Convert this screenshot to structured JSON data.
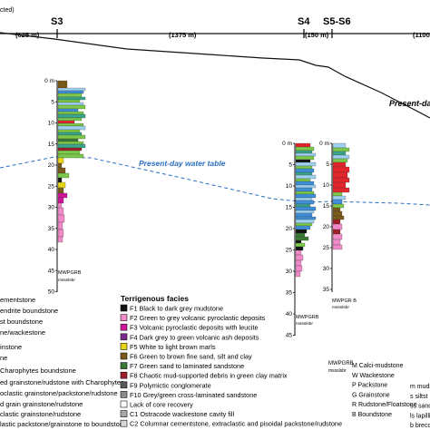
{
  "transect": {
    "head_label": "cted)",
    "stations": [
      "S3",
      "S4",
      "S5-S6"
    ],
    "distances": [
      "(625 m)",
      "(1375 m)",
      "(150 m)",
      "(1100"
    ],
    "surface_label": "Present-day"
  },
  "water_table_label": "Present-day water table",
  "logs": [
    {
      "id": "S3",
      "depth_ticks": [
        "0 m",
        "5",
        "10",
        "15",
        "20",
        "25",
        "30",
        "35",
        "40",
        "45",
        "50"
      ],
      "grain_key": "MWPGRB",
      "grain_key_sub": "mssslsbr"
    },
    {
      "id": "S4",
      "depth_ticks": [
        "0 m",
        "5",
        "10",
        "15",
        "20",
        "25",
        "30",
        "35",
        "40",
        "45"
      ],
      "grain_key": "MWPGRB",
      "grain_key_sub": "mssslsbr"
    },
    {
      "id": "S5-S6",
      "depth_ticks": [
        "0 m",
        "5",
        "10",
        "15",
        "20",
        "25",
        "30",
        "35"
      ],
      "grain_key": "MWPGR B",
      "grain_key_sub": "mssslsbr"
    }
  ],
  "carbonate_legend": [
    "ementstone",
    "endrite boundstone",
    "st boundstone",
    "ne/wackestone",
    "instone",
    "ne",
    "Charophytes boundstone",
    "ed grainstone/rudstone with Charophytes",
    "oclastic grainstone/packstone/rudstone",
    "d grain grainstone/rudstone",
    "clastic grainstone/rudstone",
    "lastic packstone/grainstone to boundstone"
  ],
  "terrigenous_legend": {
    "title": "Terrigenous facies",
    "items": [
      {
        "label": "F1 Black to dark grey mudstone",
        "color": "#141414"
      },
      {
        "label": "F2 Green to grey volcanic pyroclastic deposits",
        "color": "#f08ac8"
      },
      {
        "label": "F3 Volcanic pyroclastic deposits with leucite",
        "color": "#d0159a"
      },
      {
        "label": "F4 Dark grey to green volcanic ash deposits",
        "color": "#7a2b8e"
      },
      {
        "label": "F5 White to light brown marls",
        "color": "#e6d416"
      },
      {
        "label": "F6 Green to brown fine sand, silt and clay",
        "color": "#7a5a1a"
      },
      {
        "label": "F7 Green sand to laminated sandstone",
        "color": "#3a7a34"
      },
      {
        "label": "F8 Chaotic mud-supported debris in green clay matrix",
        "color": "#a01e28"
      },
      {
        "label": "F9 Polymictic conglomerate",
        "color": "#5a5a5a"
      },
      {
        "label": "F10 Grey/green cross-laminated sandstone",
        "color": "#8c8c8c"
      },
      {
        "label": "Lack of core recovery",
        "color": "#ffffff"
      },
      {
        "label": "C1 Ostracode wackestone cavity fill",
        "color": "#a8a8a8"
      },
      {
        "label": "C2 Columnar cementstone, extraclastic and pisoidal packstone/rudstone",
        "color": "#d8d8d8"
      }
    ]
  },
  "grain_size_key": {
    "scale": "MWPGRB",
    "scale_sub": "mssslsbr",
    "left": [
      "M Calci-mudstone",
      "W Wackestone",
      "P Packstone",
      "G Grainstone",
      "R Rudstone/Floatstone",
      "B Boundstone"
    ],
    "right": [
      "m mudst",
      "s siltst",
      "ss sands",
      "ls lapilli",
      "b brecci",
      ""
    ]
  },
  "colors": {
    "water_table": "#2a6fc0",
    "surface_line": "#111111",
    "carbonate_blue": "#3f8fd8",
    "carbonate_lightblue": "#9fd0ef",
    "carbonate_green": "#7cc84a",
    "carbonate_teal": "#3aa58a",
    "terrigenous_red": "#e3262c",
    "terrigenous_pink": "#f08ac8"
  }
}
